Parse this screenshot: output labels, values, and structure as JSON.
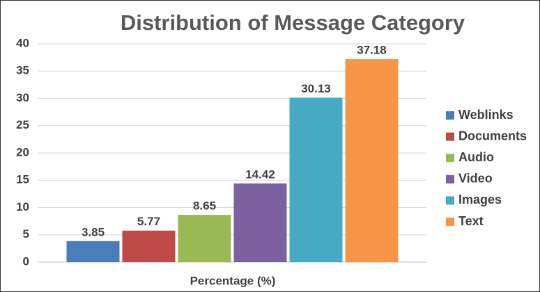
{
  "chart_data": {
    "type": "bar",
    "title": "Distribution of Message Category",
    "x_label": "Percentage (%)",
    "categories": [
      null
    ],
    "series": [
      {
        "name": "Weblinks",
        "color": "#4a7ebb",
        "values": [
          3.85
        ]
      },
      {
        "name": "Documents",
        "color": "#be4b48",
        "values": [
          5.77
        ]
      },
      {
        "name": "Audio",
        "color": "#98b954",
        "values": [
          8.65
        ]
      },
      {
        "name": "Video",
        "color": "#7d60a0",
        "values": [
          14.42
        ]
      },
      {
        "name": "Images",
        "color": "#46aac5",
        "values": [
          30.13
        ]
      },
      {
        "name": "Text",
        "color": "#f79646",
        "values": [
          37.18
        ]
      }
    ],
    "ylim": [
      0,
      40
    ],
    "yticks": [
      0,
      5,
      10,
      15,
      20,
      25,
      30,
      35,
      40
    ],
    "grid": true,
    "legend": "right"
  }
}
